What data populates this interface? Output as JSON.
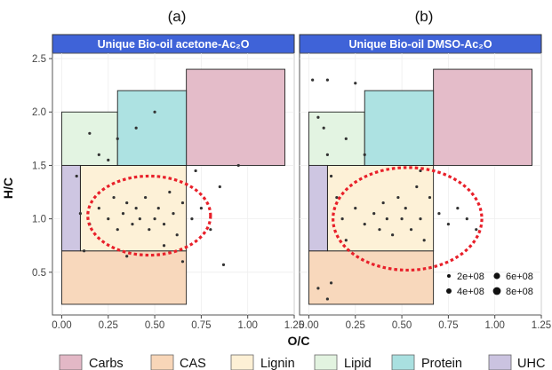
{
  "chart_data": [
    {
      "panel_label": "(a)",
      "title": "Unique Bio-oil acetone-Ac₂O",
      "type": "scatter",
      "xlabel": "O/C",
      "ylabel": "H/C",
      "xlim": [
        -0.05,
        1.25
      ],
      "ylim": [
        0.1,
        2.55
      ],
      "x_ticks": [
        "0.00",
        "0.25",
        "0.50",
        "0.75",
        "1.00",
        "1.25"
      ],
      "y_ticks": [
        "0.5",
        "1.0",
        "1.5",
        "2.0",
        "2.5"
      ],
      "series": [
        {
          "points": [
            [
              0.1,
              1.05
            ],
            [
              0.15,
              0.95
            ],
            [
              0.2,
              1.1
            ],
            [
              0.25,
              1.0
            ],
            [
              0.28,
              1.2
            ],
            [
              0.3,
              0.9
            ],
            [
              0.33,
              1.05
            ],
            [
              0.35,
              1.15
            ],
            [
              0.38,
              0.95
            ],
            [
              0.4,
              1.1
            ],
            [
              0.42,
              1.0
            ],
            [
              0.45,
              1.2
            ],
            [
              0.47,
              0.9
            ],
            [
              0.5,
              1.0
            ],
            [
              0.52,
              1.1
            ],
            [
              0.55,
              0.95
            ],
            [
              0.58,
              1.25
            ],
            [
              0.6,
              1.05
            ],
            [
              0.62,
              0.85
            ],
            [
              0.65,
              1.15
            ],
            [
              0.7,
              1.0
            ],
            [
              0.75,
              1.1
            ],
            [
              0.8,
              0.9
            ],
            [
              0.85,
              1.3
            ],
            [
              0.5,
              2.0
            ],
            [
              0.4,
              1.85
            ],
            [
              0.3,
              1.75
            ],
            [
              0.2,
              1.6
            ],
            [
              0.15,
              1.8
            ],
            [
              0.25,
              1.55
            ],
            [
              0.08,
              1.4
            ],
            [
              0.12,
              0.7
            ],
            [
              0.35,
              0.65
            ],
            [
              0.55,
              0.75
            ],
            [
              0.65,
              0.6
            ],
            [
              0.87,
              0.57
            ],
            [
              0.72,
              1.45
            ],
            [
              0.95,
              1.5
            ]
          ]
        }
      ],
      "regions": [
        {
          "name": "Carbs",
          "x": [
            0.67,
            1.2
          ],
          "y": [
            1.5,
            2.4
          ],
          "color": "#e3b8c6"
        },
        {
          "name": "CAS",
          "x": [
            0.0,
            0.67
          ],
          "y": [
            0.2,
            0.7
          ],
          "color": "#f8d6b8"
        },
        {
          "name": "Lignin",
          "x": [
            0.1,
            0.67
          ],
          "y": [
            0.7,
            1.5
          ],
          "color": "#fdf0d5"
        },
        {
          "name": "Lipid",
          "x": [
            0.0,
            0.3
          ],
          "y": [
            1.5,
            2.0
          ],
          "color": "#e2f3e0"
        },
        {
          "name": "Protein",
          "x": [
            0.3,
            0.67
          ],
          "y": [
            1.5,
            2.2
          ],
          "color": "#a9e0e0"
        },
        {
          "name": "UHC",
          "x": [
            0.0,
            0.1
          ],
          "y": [
            0.7,
            1.5
          ],
          "color": "#cbc3e0"
        }
      ],
      "highlight_ellipse": {
        "center": [
          0.47,
          1.03
        ],
        "radius": [
          0.33,
          0.37
        ],
        "color": "#e8202a"
      }
    },
    {
      "panel_label": "(b)",
      "title": "Unique Bio-oil DMSO-Ac₂O",
      "type": "scatter",
      "xlabel": "O/C",
      "ylabel": "H/C",
      "xlim": [
        -0.05,
        1.25
      ],
      "ylim": [
        0.1,
        2.55
      ],
      "x_ticks": [
        "0.00",
        "0.25",
        "0.50",
        "0.75",
        "1.00",
        "1.25"
      ],
      "series": [
        {
          "points": [
            [
              0.05,
              1.95
            ],
            [
              0.08,
              1.85
            ],
            [
              0.1,
              1.6
            ],
            [
              0.12,
              1.4
            ],
            [
              0.15,
              1.2
            ],
            [
              0.18,
              1.0
            ],
            [
              0.2,
              0.8
            ],
            [
              0.25,
              1.1
            ],
            [
              0.3,
              0.95
            ],
            [
              0.35,
              1.05
            ],
            [
              0.38,
              0.9
            ],
            [
              0.4,
              1.15
            ],
            [
              0.42,
              1.0
            ],
            [
              0.45,
              0.85
            ],
            [
              0.48,
              1.2
            ],
            [
              0.5,
              1.0
            ],
            [
              0.52,
              1.1
            ],
            [
              0.55,
              0.9
            ],
            [
              0.58,
              1.3
            ],
            [
              0.6,
              1.0
            ],
            [
              0.62,
              0.8
            ],
            [
              0.65,
              1.2
            ],
            [
              0.7,
              1.05
            ],
            [
              0.75,
              0.95
            ],
            [
              0.8,
              1.1
            ],
            [
              0.85,
              1.0
            ],
            [
              0.9,
              0.9
            ],
            [
              0.02,
              2.3
            ],
            [
              0.1,
              2.3
            ],
            [
              0.25,
              2.27
            ],
            [
              0.05,
              0.35
            ],
            [
              0.1,
              0.25
            ],
            [
              0.12,
              0.4
            ],
            [
              0.6,
              1.45
            ],
            [
              0.3,
              1.6
            ],
            [
              0.2,
              1.75
            ]
          ]
        }
      ],
      "size_legend": [
        "2e+08",
        "4e+08",
        "6e+08",
        "8e+08"
      ],
      "regions": [
        {
          "name": "Carbs",
          "x": [
            0.67,
            1.2
          ],
          "y": [
            1.5,
            2.4
          ],
          "color": "#e3b8c6"
        },
        {
          "name": "CAS",
          "x": [
            0.0,
            0.67
          ],
          "y": [
            0.2,
            0.7
          ],
          "color": "#f8d6b8"
        },
        {
          "name": "Lignin",
          "x": [
            0.1,
            0.67
          ],
          "y": [
            0.7,
            1.5
          ],
          "color": "#fdf0d5"
        },
        {
          "name": "Lipid",
          "x": [
            0.0,
            0.3
          ],
          "y": [
            1.5,
            2.0
          ],
          "color": "#e2f3e0"
        },
        {
          "name": "Protein",
          "x": [
            0.3,
            0.67
          ],
          "y": [
            1.5,
            2.2
          ],
          "color": "#a9e0e0"
        },
        {
          "name": "UHC",
          "x": [
            0.0,
            0.1
          ],
          "y": [
            0.7,
            1.5
          ],
          "color": "#cbc3e0"
        }
      ],
      "highlight_ellipse": {
        "center": [
          0.53,
          1.0
        ],
        "radius": [
          0.4,
          0.48
        ],
        "color": "#e8202a"
      }
    }
  ],
  "legend": [
    {
      "label": "Carbs",
      "color": "#e3b8c6"
    },
    {
      "label": "CAS",
      "color": "#f8d6b8"
    },
    {
      "label": "Lignin",
      "color": "#fdf0d5"
    },
    {
      "label": "Lipid",
      "color": "#e2f3e0"
    },
    {
      "label": "Protein",
      "color": "#a9e0e0"
    },
    {
      "label": "UHC",
      "color": "#cbc3e0"
    }
  ],
  "colors": {
    "strip": "#3f63d8",
    "panel_bg": "#ffffff",
    "points": "#333333"
  }
}
